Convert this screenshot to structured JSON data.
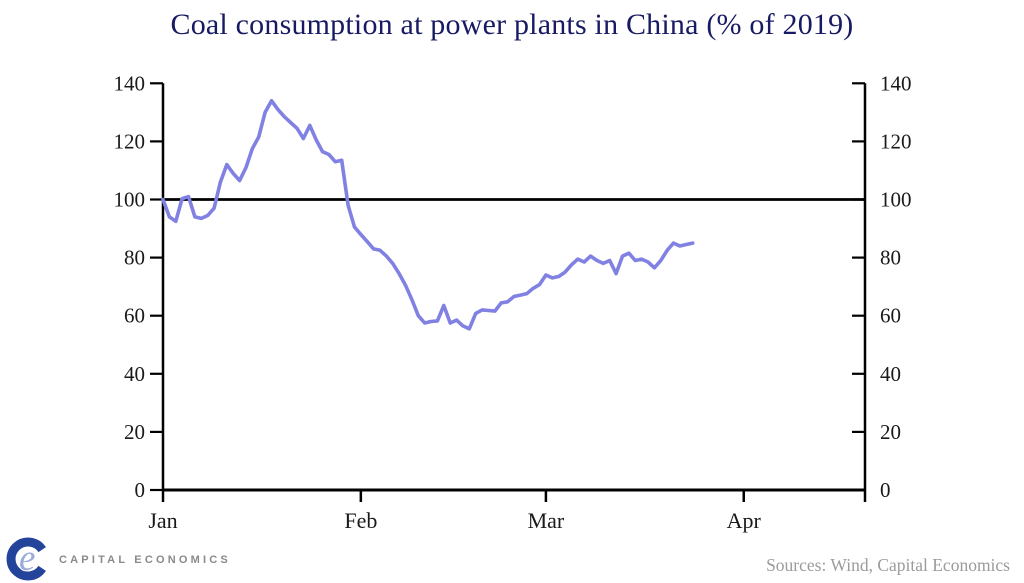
{
  "title": "Coal consumption at power plants in China (% of 2019)",
  "footer": {
    "sources": "Sources: Wind, Capital Economics",
    "logo_text": "CAPITAL ECONOMICS",
    "logo_e_glyph": "e"
  },
  "colors": {
    "line": "#8081e2",
    "title": "#181a63",
    "axis": "#000000",
    "axis_label": "#1a1a1a",
    "sources_text": "#9b9b9b",
    "logo_c": "#24449c",
    "logo_e": "#9aabdc",
    "logo_text": "#8a8a8a"
  },
  "chart_data": {
    "type": "line",
    "title": "Coal consumption at power plants in China (% of 2019)",
    "xlabel": "",
    "ylabel": "",
    "ylim": [
      0,
      140
    ],
    "y_ticks": [
      0,
      20,
      40,
      60,
      80,
      100,
      120,
      140
    ],
    "y_axis_sides": "both",
    "grid": false,
    "legend": "none",
    "reference_line_y": 100,
    "x_tick_labels": [
      "Jan",
      "Feb",
      "Mar",
      "Apr"
    ],
    "x_tick_day_offsets": [
      0,
      31,
      60,
      91
    ],
    "x_axis_total_days": 110,
    "series": [
      {
        "name": "coal-consumption-pct-of-2019",
        "start": "Jan",
        "frequency": "daily",
        "values": [
          100,
          94,
          92.5,
          100.3,
          101,
          94,
          93.5,
          94.5,
          97,
          106,
          112,
          109,
          106.5,
          111,
          117.5,
          121.5,
          130,
          134,
          131,
          128.5,
          126.5,
          124.5,
          121,
          125.5,
          120.5,
          116.5,
          115.5,
          113,
          113.5,
          98,
          90.5,
          88,
          85.5,
          83,
          82.5,
          80.5,
          78,
          74.5,
          70.5,
          65.5,
          60,
          57.5,
          58,
          58.2,
          63.5,
          57.5,
          58.5,
          56.5,
          55.5,
          60.8,
          62,
          61.8,
          61.6,
          64.4,
          64.8,
          66.6,
          67.1,
          67.6,
          69.4,
          70.7,
          74,
          73,
          73.5,
          75,
          77.5,
          79.5,
          78.5,
          80.5,
          79,
          78,
          79,
          74.5,
          80.5,
          81.5,
          79,
          79.5,
          78.5,
          76.5,
          79,
          82.5,
          85,
          84,
          84.5,
          85
        ]
      }
    ]
  }
}
